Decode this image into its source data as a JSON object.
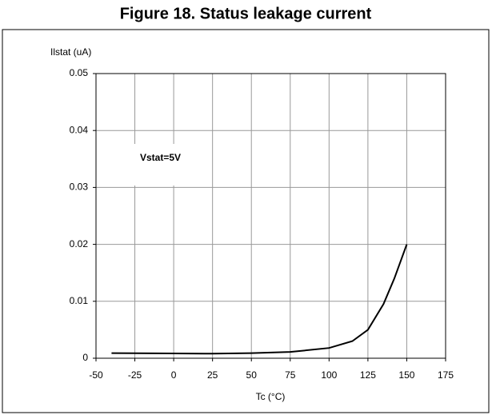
{
  "chart_data": {
    "type": "line",
    "title": "Figure 18. Status leakage current",
    "y_label": "Ilstat (uA)",
    "x_label": "Tc (°C)",
    "annotation": "Vstat=5V",
    "x": [
      -40,
      -25,
      0,
      25,
      50,
      75,
      100,
      115,
      125,
      135,
      142,
      150
    ],
    "series": [
      {
        "color": "#000000",
        "values": [
          0.0009,
          0.00088,
          0.00085,
          0.0008,
          0.0009,
          0.0011,
          0.0018,
          0.003,
          0.005,
          0.0095,
          0.014,
          0.02
        ]
      }
    ],
    "xlim": [
      -50,
      175
    ],
    "xticks": [
      -50,
      -25,
      0,
      25,
      50,
      75,
      100,
      125,
      150,
      175
    ],
    "ylim": [
      0,
      0.05
    ],
    "yticks": [
      0,
      0.01,
      0.02,
      0.03,
      0.04,
      0.05
    ],
    "grid": true
  }
}
